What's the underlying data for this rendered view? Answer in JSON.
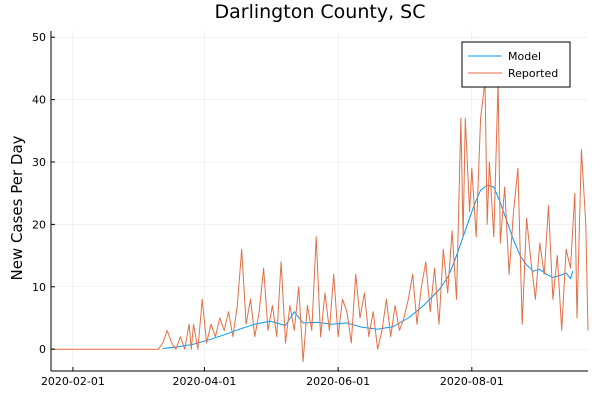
{
  "chart_data": {
    "type": "line",
    "title": "Darlington County, SC",
    "xlabel": "",
    "ylabel": "New Cases Per Day",
    "xlim": [
      "2020-01-22",
      "2020-09-23"
    ],
    "ylim": [
      -3.5,
      51
    ],
    "x_ticks": [
      "2020-02-01",
      "2020-04-01",
      "2020-06-01",
      "2020-08-01"
    ],
    "y_ticks": [
      0,
      10,
      20,
      30,
      40,
      50
    ],
    "grid": true,
    "legend_position": "top-right",
    "series": [
      {
        "name": "Model",
        "color": "#009AFA",
        "points": [
          [
            "2020-03-13",
            0.1
          ],
          [
            "2020-03-20",
            0.4
          ],
          [
            "2020-03-27",
            0.8
          ],
          [
            "2020-04-03",
            1.5
          ],
          [
            "2020-04-10",
            2.3
          ],
          [
            "2020-04-17",
            3.2
          ],
          [
            "2020-04-24",
            4.0
          ],
          [
            "2020-05-01",
            4.5
          ],
          [
            "2020-05-08",
            3.8
          ],
          [
            "2020-05-12",
            6.0
          ],
          [
            "2020-05-16",
            4.2
          ],
          [
            "2020-05-22",
            4.3
          ],
          [
            "2020-05-29",
            4.0
          ],
          [
            "2020-06-05",
            4.2
          ],
          [
            "2020-06-12",
            3.5
          ],
          [
            "2020-06-19",
            3.2
          ],
          [
            "2020-06-26",
            3.6
          ],
          [
            "2020-07-03",
            5.0
          ],
          [
            "2020-07-10",
            7.0
          ],
          [
            "2020-07-17",
            9.5
          ],
          [
            "2020-07-21",
            11.5
          ],
          [
            "2020-07-24",
            14.0
          ],
          [
            "2020-07-27",
            17.0
          ],
          [
            "2020-07-30",
            20.0
          ],
          [
            "2020-08-02",
            23.0
          ],
          [
            "2020-08-05",
            25.5
          ],
          [
            "2020-08-08",
            26.3
          ],
          [
            "2020-08-11",
            26.0
          ],
          [
            "2020-08-14",
            23.5
          ],
          [
            "2020-08-17",
            20.5
          ],
          [
            "2020-08-20",
            17.5
          ],
          [
            "2020-08-23",
            15.0
          ],
          [
            "2020-08-26",
            13.5
          ],
          [
            "2020-08-29",
            12.5
          ],
          [
            "2020-09-01",
            12.8
          ],
          [
            "2020-09-04",
            12.0
          ],
          [
            "2020-09-07",
            11.5
          ],
          [
            "2020-09-10",
            11.8
          ],
          [
            "2020-09-13",
            12.2
          ],
          [
            "2020-09-15",
            11.3
          ],
          [
            "2020-09-16",
            12.5
          ]
        ]
      },
      {
        "name": "Reported",
        "color": "#E26F46",
        "points": [
          [
            "2020-01-22",
            0
          ],
          [
            "2020-03-11",
            0
          ],
          [
            "2020-03-13",
            1
          ],
          [
            "2020-03-15",
            3
          ],
          [
            "2020-03-17",
            1
          ],
          [
            "2020-03-19",
            0
          ],
          [
            "2020-03-21",
            2
          ],
          [
            "2020-03-23",
            0
          ],
          [
            "2020-03-25",
            4
          ],
          [
            "2020-03-26",
            0
          ],
          [
            "2020-03-27",
            4
          ],
          [
            "2020-03-29",
            0
          ],
          [
            "2020-03-31",
            8
          ],
          [
            "2020-04-02",
            1
          ],
          [
            "2020-04-04",
            4
          ],
          [
            "2020-04-06",
            2
          ],
          [
            "2020-04-08",
            5
          ],
          [
            "2020-04-10",
            3
          ],
          [
            "2020-04-12",
            6
          ],
          [
            "2020-04-14",
            2
          ],
          [
            "2020-04-16",
            7
          ],
          [
            "2020-04-18",
            16
          ],
          [
            "2020-04-20",
            4
          ],
          [
            "2020-04-22",
            8
          ],
          [
            "2020-04-24",
            2
          ],
          [
            "2020-04-26",
            6
          ],
          [
            "2020-04-28",
            13
          ],
          [
            "2020-04-30",
            3
          ],
          [
            "2020-05-02",
            7
          ],
          [
            "2020-05-04",
            2
          ],
          [
            "2020-05-06",
            14
          ],
          [
            "2020-05-08",
            1
          ],
          [
            "2020-05-10",
            7
          ],
          [
            "2020-05-12",
            3
          ],
          [
            "2020-05-14",
            10
          ],
          [
            "2020-05-16",
            -2
          ],
          [
            "2020-05-18",
            7
          ],
          [
            "2020-05-20",
            3
          ],
          [
            "2020-05-22",
            18
          ],
          [
            "2020-05-24",
            2
          ],
          [
            "2020-05-26",
            9
          ],
          [
            "2020-05-28",
            3
          ],
          [
            "2020-05-30",
            12
          ],
          [
            "2020-06-01",
            2
          ],
          [
            "2020-06-03",
            8
          ],
          [
            "2020-06-05",
            6
          ],
          [
            "2020-06-07",
            1
          ],
          [
            "2020-06-09",
            12
          ],
          [
            "2020-06-11",
            5
          ],
          [
            "2020-06-13",
            9
          ],
          [
            "2020-06-15",
            2
          ],
          [
            "2020-06-17",
            6
          ],
          [
            "2020-06-19",
            0
          ],
          [
            "2020-06-21",
            3
          ],
          [
            "2020-06-23",
            8
          ],
          [
            "2020-06-25",
            2
          ],
          [
            "2020-06-27",
            7
          ],
          [
            "2020-06-29",
            3
          ],
          [
            "2020-07-01",
            5
          ],
          [
            "2020-07-03",
            8
          ],
          [
            "2020-07-05",
            12
          ],
          [
            "2020-07-07",
            4
          ],
          [
            "2020-07-09",
            10
          ],
          [
            "2020-07-11",
            14
          ],
          [
            "2020-07-13",
            6
          ],
          [
            "2020-07-15",
            13
          ],
          [
            "2020-07-17",
            4
          ],
          [
            "2020-07-19",
            16
          ],
          [
            "2020-07-21",
            9
          ],
          [
            "2020-07-23",
            19
          ],
          [
            "2020-07-25",
            8
          ],
          [
            "2020-07-27",
            37
          ],
          [
            "2020-07-28",
            18
          ],
          [
            "2020-07-29",
            37
          ],
          [
            "2020-07-31",
            22
          ],
          [
            "2020-08-01",
            29
          ],
          [
            "2020-08-03",
            18
          ],
          [
            "2020-08-05",
            37
          ],
          [
            "2020-08-07",
            43
          ],
          [
            "2020-08-08",
            20
          ],
          [
            "2020-08-09",
            30
          ],
          [
            "2020-08-11",
            18
          ],
          [
            "2020-08-13",
            43
          ],
          [
            "2020-08-14",
            17
          ],
          [
            "2020-08-16",
            26
          ],
          [
            "2020-08-18",
            12
          ],
          [
            "2020-08-20",
            22
          ],
          [
            "2020-08-22",
            29
          ],
          [
            "2020-08-24",
            4
          ],
          [
            "2020-08-26",
            21
          ],
          [
            "2020-08-28",
            14
          ],
          [
            "2020-08-30",
            8
          ],
          [
            "2020-09-01",
            17
          ],
          [
            "2020-09-03",
            12
          ],
          [
            "2020-09-05",
            23
          ],
          [
            "2020-09-07",
            8
          ],
          [
            "2020-09-09",
            15
          ],
          [
            "2020-09-11",
            3
          ],
          [
            "2020-09-13",
            16
          ],
          [
            "2020-09-15",
            13
          ],
          [
            "2020-09-17",
            25
          ],
          [
            "2020-09-18",
            5
          ],
          [
            "2020-09-20",
            32
          ],
          [
            "2020-09-22",
            20
          ],
          [
            "2020-09-23",
            3
          ]
        ]
      }
    ]
  }
}
